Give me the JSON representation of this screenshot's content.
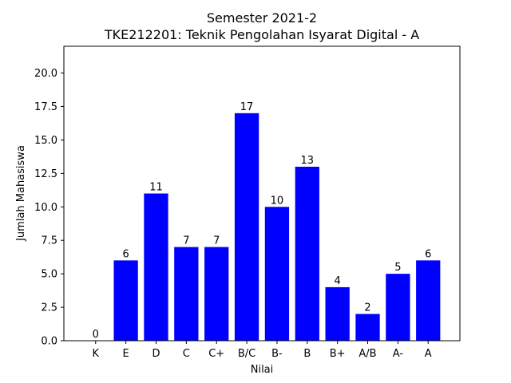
{
  "chart_data": {
    "type": "bar",
    "title_line1": "Semester 2021-2",
    "title_line2": "TKE212201: Teknik Pengolahan Isyarat Digital - A",
    "xlabel": "Nilai",
    "ylabel": "Jumlah Mahasiswa",
    "categories": [
      "K",
      "E",
      "D",
      "C",
      "C+",
      "B/C",
      "B-",
      "B",
      "B+",
      "A/B",
      "A-",
      "A"
    ],
    "values": [
      0,
      6,
      11,
      7,
      7,
      17,
      10,
      13,
      4,
      2,
      5,
      6
    ],
    "ylim": [
      0,
      22
    ],
    "yticks": [
      0.0,
      2.5,
      5.0,
      7.5,
      10.0,
      12.5,
      15.0,
      17.5,
      20.0
    ],
    "ytick_labels": [
      "0.0",
      "2.5",
      "5.0",
      "7.5",
      "10.0",
      "12.5",
      "15.0",
      "17.5",
      "20.0"
    ],
    "bar_color": "#0000ff",
    "grid": false
  }
}
